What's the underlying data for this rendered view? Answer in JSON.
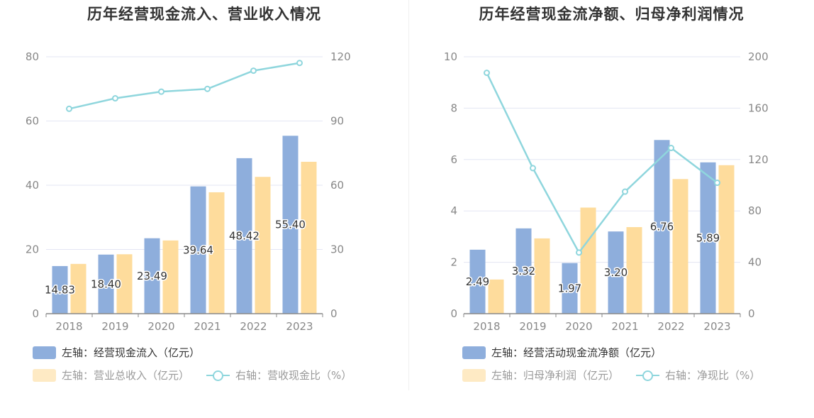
{
  "colors": {
    "bar_blue": "#8eaedc",
    "bar_orange": "#fedc9c",
    "line_cyan": "#8fd6dd",
    "grid": "#e3e6f3",
    "axis": "#888888"
  },
  "chart_data": [
    {
      "type": "bar",
      "title": "历年经营现金流入、营业收入情况",
      "categories": [
        "2018",
        "2019",
        "2020",
        "2021",
        "2022",
        "2023"
      ],
      "left_axis": {
        "ylim": [
          0,
          80
        ],
        "ticks": [
          "0",
          "20",
          "40",
          "60",
          "80"
        ]
      },
      "right_axis": {
        "ylim": [
          0,
          120
        ],
        "ticks": [
          "0",
          "30",
          "60",
          "90",
          "120"
        ]
      },
      "series": [
        {
          "name": "经营现金流入（亿元）",
          "axis": "left",
          "type": "bar",
          "values": [
            14.83,
            18.4,
            23.49,
            39.64,
            48.42,
            55.4
          ],
          "labels": [
            "14.83",
            "18.40",
            "23.49",
            "39.64",
            "48.42",
            "55.40"
          ]
        },
        {
          "name": "营业总收入（亿元）",
          "axis": "left",
          "type": "bar",
          "values": [
            15.5,
            18.5,
            22.8,
            37.8,
            42.6,
            47.3
          ]
        },
        {
          "name": "营收现金比（%）",
          "axis": "right",
          "type": "line",
          "values": [
            95.7,
            100.6,
            103.7,
            105.0,
            113.5,
            117.1
          ]
        }
      ],
      "legend": [
        {
          "prefix": "左轴：",
          "text": "经营现金流入（亿元）"
        },
        {
          "prefix": "左轴：",
          "text": "营业总收入（亿元）"
        },
        {
          "prefix": "右轴：",
          "text": "营收现金比（%）"
        }
      ],
      "grid": true,
      "legend_position": "bottom"
    },
    {
      "type": "bar",
      "title": "历年经营现金流净额、归母净利润情况",
      "categories": [
        "2018",
        "2019",
        "2020",
        "2021",
        "2022",
        "2023"
      ],
      "left_axis": {
        "ylim": [
          0,
          10
        ],
        "ticks": [
          "0",
          "2",
          "4",
          "6",
          "8",
          "10"
        ]
      },
      "right_axis": {
        "ylim": [
          0,
          200
        ],
        "ticks": [
          "0",
          "40",
          "80",
          "120",
          "160",
          "200"
        ]
      },
      "series": [
        {
          "name": "经营活动现金流净额（亿元）",
          "axis": "left",
          "type": "bar",
          "values": [
            2.49,
            3.32,
            1.97,
            3.2,
            6.76,
            5.89
          ],
          "labels": [
            "2.49",
            "3.32",
            "1.97",
            "3.20",
            "6.76",
            "5.89"
          ]
        },
        {
          "name": "归母净利润（亿元）",
          "axis": "left",
          "type": "bar",
          "values": [
            1.33,
            2.93,
            4.13,
            3.37,
            5.24,
            5.78
          ]
        },
        {
          "name": "净现比（%）",
          "axis": "right",
          "type": "line",
          "values": [
            187.5,
            113.3,
            47.6,
            95.0,
            129.0,
            101.9
          ]
        }
      ],
      "legend": [
        {
          "prefix": "左轴：",
          "text": "经营活动现金流净额（亿元）"
        },
        {
          "prefix": "左轴：",
          "text": "归母净利润（亿元）"
        },
        {
          "prefix": "右轴：",
          "text": "净现比（%）"
        }
      ],
      "grid": true,
      "legend_position": "bottom"
    }
  ]
}
